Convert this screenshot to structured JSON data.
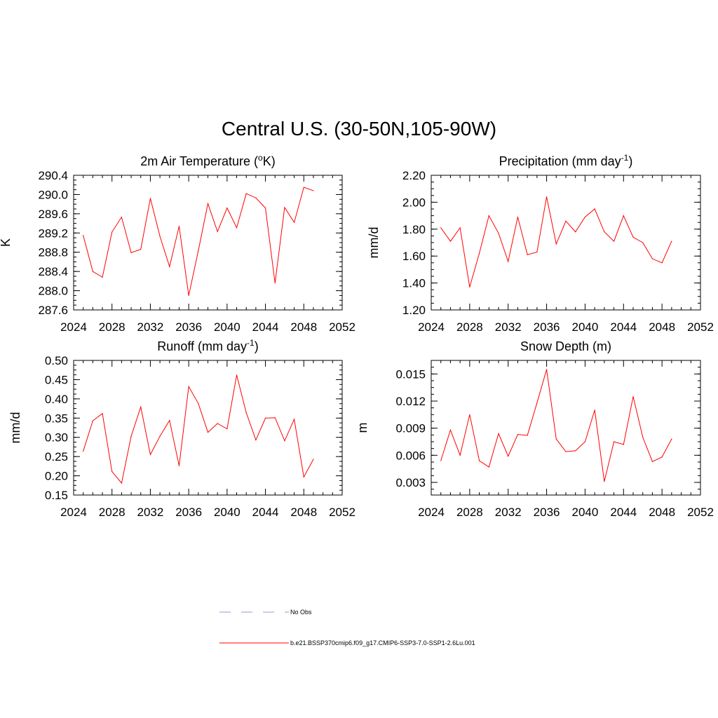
{
  "title": "Central U.S. (30-50N,105-90W)",
  "colors": {
    "model": "#ff0000",
    "obs": "#9999cc",
    "axis": "#000000"
  },
  "legend": [
    {
      "label": "No Obs",
      "style": "dashed",
      "color": "#9999cc"
    },
    {
      "label": "b.e21.BSSP370cmip6.f09_g17.CMIP6-SSP3-7.0-SSP1-2.6Lu.001",
      "style": "solid",
      "color": "#ff0000"
    }
  ],
  "chart_data": [
    {
      "type": "line",
      "title": "2m Air Temperature (",
      "title_sup": "o",
      "title_after": "K)",
      "ylabel": "K",
      "xlim": [
        2024,
        2052
      ],
      "xticks": [
        "2024",
        "2028",
        "2032",
        "2036",
        "2040",
        "2044",
        "2048",
        "2052"
      ],
      "ylim": [
        287.6,
        290.4
      ],
      "yticks": [
        "287.6",
        "288.0",
        "288.4",
        "288.8",
        "289.2",
        "289.6",
        "290.0",
        "290.4"
      ],
      "x": [
        2025,
        2026,
        2027,
        2028,
        2029,
        2030,
        2031,
        2032,
        2033,
        2034,
        2035,
        2036,
        2037,
        2038,
        2039,
        2040,
        2041,
        2042,
        2043,
        2044,
        2045,
        2046,
        2047,
        2048,
        2049
      ],
      "series": [
        {
          "values": [
            289.15,
            288.4,
            288.28,
            289.22,
            289.53,
            288.79,
            288.86,
            289.92,
            289.13,
            288.5,
            289.34,
            287.9,
            288.83,
            289.81,
            289.23,
            289.72,
            289.31,
            290.02,
            289.93,
            289.72,
            288.16,
            289.73,
            289.42,
            290.15,
            290.08
          ]
        }
      ]
    },
    {
      "type": "line",
      "title": "Precipitation (mm day",
      "title_sup": "-1",
      "title_after": ")",
      "ylabel": "mm/d",
      "xlim": [
        2024,
        2052
      ],
      "xticks": [
        "2024",
        "2028",
        "2032",
        "2036",
        "2040",
        "2044",
        "2048",
        "2052"
      ],
      "ylim": [
        1.2,
        2.2
      ],
      "yticks": [
        "1.20",
        "1.40",
        "1.60",
        "1.80",
        "2.00",
        "2.20"
      ],
      "x": [
        2025,
        2026,
        2027,
        2028,
        2029,
        2030,
        2031,
        2032,
        2033,
        2034,
        2035,
        2036,
        2037,
        2038,
        2039,
        2040,
        2041,
        2042,
        2043,
        2044,
        2045,
        2046,
        2047,
        2048,
        2049
      ],
      "series": [
        {
          "values": [
            1.81,
            1.71,
            1.81,
            1.37,
            1.62,
            1.9,
            1.77,
            1.56,
            1.89,
            1.61,
            1.63,
            2.04,
            1.69,
            1.86,
            1.78,
            1.89,
            1.95,
            1.78,
            1.71,
            1.9,
            1.74,
            1.7,
            1.58,
            1.55,
            1.71
          ]
        }
      ]
    },
    {
      "type": "line",
      "title": "Runoff (mm day",
      "title_sup": "-1",
      "title_after": ")",
      "ylabel": "mm/d",
      "xlim": [
        2024,
        2052
      ],
      "xticks": [
        "2024",
        "2028",
        "2032",
        "2036",
        "2040",
        "2044",
        "2048",
        "2052"
      ],
      "ylim": [
        0.15,
        0.5
      ],
      "yticks": [
        "0.15",
        "0.20",
        "0.25",
        "0.30",
        "0.35",
        "0.40",
        "0.45",
        "0.50"
      ],
      "x": [
        2025,
        2026,
        2027,
        2028,
        2029,
        2030,
        2031,
        2032,
        2033,
        2034,
        2035,
        2036,
        2037,
        2038,
        2039,
        2040,
        2041,
        2042,
        2043,
        2044,
        2045,
        2046,
        2047,
        2048,
        2049
      ],
      "series": [
        {
          "values": [
            0.264,
            0.343,
            0.362,
            0.211,
            0.181,
            0.303,
            0.379,
            0.255,
            0.303,
            0.344,
            0.226,
            0.432,
            0.388,
            0.313,
            0.336,
            0.322,
            0.462,
            0.364,
            0.293,
            0.35,
            0.351,
            0.291,
            0.347,
            0.197,
            0.243
          ]
        }
      ]
    },
    {
      "type": "line",
      "title": "Snow Depth (m)",
      "title_sup": "",
      "title_after": "",
      "ylabel": "m",
      "xlim": [
        2024,
        2052
      ],
      "xticks": [
        "2024",
        "2028",
        "2032",
        "2036",
        "2040",
        "2044",
        "2048",
        "2052"
      ],
      "ylim": [
        0.0016,
        0.0165
      ],
      "yticks": [
        "0.003",
        "0.006",
        "0.009",
        "0.012",
        "0.015"
      ],
      "x": [
        2025,
        2026,
        2027,
        2028,
        2029,
        2030,
        2031,
        2032,
        2033,
        2034,
        2035,
        2036,
        2037,
        2038,
        2039,
        2040,
        2041,
        2042,
        2043,
        2044,
        2045,
        2046,
        2047,
        2048,
        2049
      ],
      "series": [
        {
          "values": [
            0.0054,
            0.0088,
            0.006,
            0.0105,
            0.0054,
            0.0047,
            0.0084,
            0.0059,
            0.0083,
            0.0082,
            0.0118,
            0.0155,
            0.0078,
            0.0064,
            0.0065,
            0.0075,
            0.011,
            0.0031,
            0.0075,
            0.0072,
            0.0125,
            0.008,
            0.0053,
            0.0058,
            0.0078
          ]
        }
      ]
    }
  ]
}
